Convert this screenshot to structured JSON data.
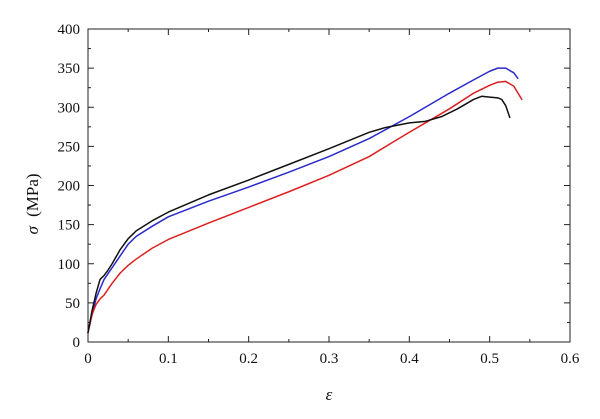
{
  "chart_data": {
    "type": "line",
    "title": "",
    "xlabel": "ε",
    "ylabel_symbol": "σ",
    "ylabel_unit": "(MPa)",
    "xlim": [
      0,
      0.6
    ],
    "ylim": [
      0,
      400
    ],
    "xticks": [
      0,
      0.1,
      0.2,
      0.3,
      0.4,
      0.5,
      0.6
    ],
    "xtick_labels": [
      "0",
      "0.1",
      "0.2",
      "0.3",
      "0.4",
      "0.5",
      "0.6"
    ],
    "yticks": [
      0,
      50,
      100,
      150,
      200,
      250,
      300,
      350,
      400
    ],
    "ytick_labels": [
      "0",
      "50",
      "100",
      "150",
      "200",
      "250",
      "300",
      "350",
      "400"
    ],
    "grid": false,
    "legend": "none",
    "series": [
      {
        "color": "#2a2acc",
        "points": [
          [
            0,
            12
          ],
          [
            0.005,
            35
          ],
          [
            0.01,
            55
          ],
          [
            0.015,
            68
          ],
          [
            0.02,
            80
          ],
          [
            0.03,
            95
          ],
          [
            0.04,
            110
          ],
          [
            0.05,
            125
          ],
          [
            0.06,
            135
          ],
          [
            0.08,
            148
          ],
          [
            0.1,
            160
          ],
          [
            0.15,
            180
          ],
          [
            0.2,
            198
          ],
          [
            0.25,
            217
          ],
          [
            0.3,
            237
          ],
          [
            0.35,
            260
          ],
          [
            0.4,
            288
          ],
          [
            0.45,
            318
          ],
          [
            0.48,
            335
          ],
          [
            0.5,
            346
          ],
          [
            0.51,
            350
          ],
          [
            0.52,
            350
          ],
          [
            0.53,
            344
          ],
          [
            0.535,
            337
          ]
        ]
      },
      {
        "color": "#dd1f1f",
        "points": [
          [
            0,
            12
          ],
          [
            0.005,
            35
          ],
          [
            0.01,
            48
          ],
          [
            0.015,
            55
          ],
          [
            0.02,
            60
          ],
          [
            0.03,
            75
          ],
          [
            0.04,
            88
          ],
          [
            0.05,
            98
          ],
          [
            0.06,
            106
          ],
          [
            0.08,
            120
          ],
          [
            0.1,
            131
          ],
          [
            0.15,
            152
          ],
          [
            0.2,
            172
          ],
          [
            0.25,
            192
          ],
          [
            0.3,
            213
          ],
          [
            0.35,
            237
          ],
          [
            0.4,
            268
          ],
          [
            0.45,
            298
          ],
          [
            0.48,
            318
          ],
          [
            0.5,
            328
          ],
          [
            0.51,
            332
          ],
          [
            0.52,
            333
          ],
          [
            0.53,
            327
          ],
          [
            0.54,
            310
          ]
        ]
      },
      {
        "color": "#111111",
        "points": [
          [
            0,
            12
          ],
          [
            0.005,
            40
          ],
          [
            0.01,
            62
          ],
          [
            0.015,
            80
          ],
          [
            0.02,
            85
          ],
          [
            0.025,
            92
          ],
          [
            0.03,
            100
          ],
          [
            0.04,
            118
          ],
          [
            0.05,
            132
          ],
          [
            0.06,
            142
          ],
          [
            0.08,
            155
          ],
          [
            0.1,
            166
          ],
          [
            0.15,
            188
          ],
          [
            0.2,
            207
          ],
          [
            0.25,
            227
          ],
          [
            0.3,
            247
          ],
          [
            0.35,
            268
          ],
          [
            0.37,
            274
          ],
          [
            0.4,
            280
          ],
          [
            0.42,
            282
          ],
          [
            0.44,
            288
          ],
          [
            0.46,
            298
          ],
          [
            0.48,
            310
          ],
          [
            0.49,
            314
          ],
          [
            0.5,
            313
          ],
          [
            0.51,
            312
          ],
          [
            0.515,
            310
          ],
          [
            0.52,
            302
          ],
          [
            0.525,
            287
          ]
        ]
      }
    ]
  }
}
